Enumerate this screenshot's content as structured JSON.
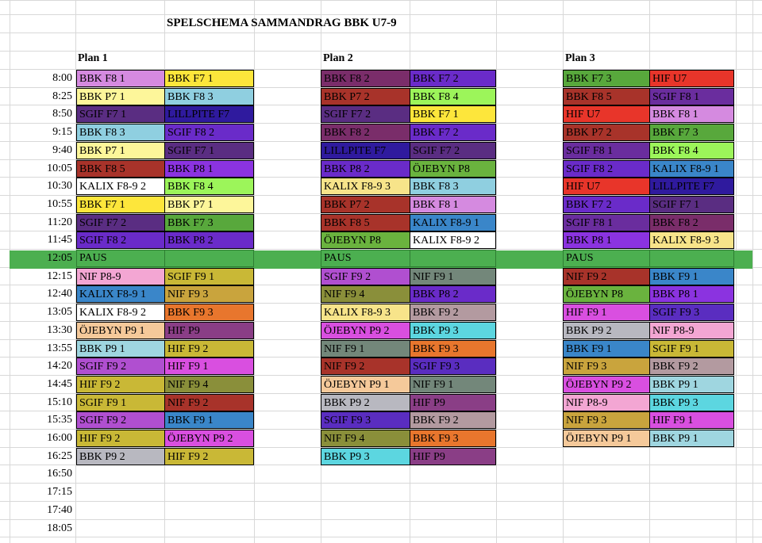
{
  "title": "SPELSCHEMA SAMMANDRAG BBK U7-9",
  "pause_label": "PAUS",
  "pause_time": "12:05",
  "times_before_pause": [
    "8:00",
    "8:25",
    "8:50",
    "9:15",
    "9:40",
    "10:05",
    "10:30",
    "10:55",
    "11:20",
    "11:45"
  ],
  "times_after_pause": [
    "12:15",
    "12:40",
    "13:05",
    "13:30",
    "13:55",
    "14:20",
    "14:45",
    "15:10",
    "15:35",
    "16:00",
    "16:25",
    "16:50",
    "17:15",
    "17:40",
    "18:05"
  ],
  "plans": [
    {
      "label": "Plan 1",
      "before": [
        [
          {
            "t": "BBK F8 1",
            "c": "#d58ae0",
            "f": "#000"
          },
          {
            "t": "BBK F7 1",
            "c": "#fde63b",
            "f": "#000"
          }
        ],
        [
          {
            "t": "BBK P7 1",
            "c": "#fdf69a",
            "f": "#000"
          },
          {
            "t": "BBK F8 3",
            "c": "#8fcfe0",
            "f": "#000"
          }
        ],
        [
          {
            "t": "SGIF F7 1",
            "c": "#5a2d82",
            "f": "#000"
          },
          {
            "t": "LILLPITE F7",
            "c": "#2f1a9e",
            "f": "#000"
          }
        ],
        [
          {
            "t": "BBK F8 3",
            "c": "#8fcfe0",
            "f": "#000"
          },
          {
            "t": "SGIF F8 2",
            "c": "#6a2bc9",
            "f": "#000"
          }
        ],
        [
          {
            "t": "BBK P7 1",
            "c": "#fdf69a",
            "f": "#000"
          },
          {
            "t": "SGIF F7 1",
            "c": "#5a2d82",
            "f": "#000"
          }
        ],
        [
          {
            "t": "BBK F8 5",
            "c": "#a8332a",
            "f": "#000"
          },
          {
            "t": "BBK P8 1",
            "c": "#8b33e0",
            "f": "#000"
          }
        ],
        [
          {
            "t": "KALIX F8-9 2",
            "c": "#ffffff",
            "f": "#000"
          },
          {
            "t": "BBK F8 4",
            "c": "#9cf55a",
            "f": "#000"
          }
        ],
        [
          {
            "t": "BBK F7 1",
            "c": "#fde63b",
            "f": "#000"
          },
          {
            "t": "BBK P7 1",
            "c": "#fdf69a",
            "f": "#000"
          }
        ],
        [
          {
            "t": "SGIF F7 2",
            "c": "#5a2d82",
            "f": "#000"
          },
          {
            "t": "BBK F7 3",
            "c": "#58a83c",
            "f": "#000"
          }
        ],
        [
          {
            "t": "SGIF F8 2",
            "c": "#6a2bc9",
            "f": "#000"
          },
          {
            "t": "BBK P8 2",
            "c": "#6a2bc9",
            "f": "#000"
          }
        ]
      ],
      "after": [
        [
          {
            "t": "NIF P8-9",
            "c": "#f3a6d3",
            "f": "#000"
          },
          {
            "t": "SGIF F9 1",
            "c": "#c9b836",
            "f": "#000"
          }
        ],
        [
          {
            "t": "KALIX F8-9 1",
            "c": "#3a86c9",
            "f": "#000"
          },
          {
            "t": "NIF F9 3",
            "c": "#c9a43d",
            "f": "#000"
          }
        ],
        [
          {
            "t": "KALIX F8-9 2",
            "c": "#ffffff",
            "f": "#000"
          },
          {
            "t": "BBK F9 3",
            "c": "#e8762d",
            "f": "#000"
          }
        ],
        [
          {
            "t": "ÖJEBYN P9 1",
            "c": "#f5c99a",
            "f": "#000"
          },
          {
            "t": "HIF P9",
            "c": "#8a3e86",
            "f": "#000"
          }
        ],
        [
          {
            "t": "BBK P9 1",
            "c": "#9fd6e0",
            "f": "#000"
          },
          {
            "t": "HIF F9 2",
            "c": "#c9b836",
            "f": "#000"
          }
        ],
        [
          {
            "t": "SGIF F9 2",
            "c": "#b04fd0",
            "f": "#000"
          },
          {
            "t": "HIF F9 1",
            "c": "#d94fe0",
            "f": "#000"
          }
        ],
        [
          {
            "t": "HIF F9 2",
            "c": "#c9b836",
            "f": "#000"
          },
          {
            "t": "NIF F9 4",
            "c": "#8a8f3a",
            "f": "#000"
          }
        ],
        [
          {
            "t": "SGIF F9 1",
            "c": "#c9b836",
            "f": "#000"
          },
          {
            "t": "NIF F9 2",
            "c": "#a8332a",
            "f": "#000"
          }
        ],
        [
          {
            "t": "SGIF F9 2",
            "c": "#b04fd0",
            "f": "#000"
          },
          {
            "t": "BBK F9 1",
            "c": "#3a86c9",
            "f": "#000"
          }
        ],
        [
          {
            "t": "HIF F9 2",
            "c": "#c9b836",
            "f": "#000"
          },
          {
            "t": "ÖJEBYN P9 2",
            "c": "#d94fe0",
            "f": "#000"
          }
        ],
        [
          {
            "t": "BBK P9 2",
            "c": "#b8b8c0",
            "f": "#000"
          },
          {
            "t": "HIF F9 2",
            "c": "#c9b836",
            "f": "#000"
          }
        ]
      ]
    },
    {
      "label": "Plan 2",
      "before": [
        [
          {
            "t": "BBK F8 2",
            "c": "#7a2d6a",
            "f": "#000"
          },
          {
            "t": "BBK F7 2",
            "c": "#6a2bc9",
            "f": "#000"
          }
        ],
        [
          {
            "t": "BBK P7 2",
            "c": "#a8332a",
            "f": "#000"
          },
          {
            "t": "BBK F8 4",
            "c": "#9cf55a",
            "f": "#000"
          }
        ],
        [
          {
            "t": "SGIF F7 2",
            "c": "#5a2d82",
            "f": "#000"
          },
          {
            "t": "BBK F7 1",
            "c": "#fde63b",
            "f": "#000"
          }
        ],
        [
          {
            "t": "BBK F8 2",
            "c": "#7a2d6a",
            "f": "#000"
          },
          {
            "t": "BBK F7 2",
            "c": "#6a2bc9",
            "f": "#000"
          }
        ],
        [
          {
            "t": "LILLPITE F7",
            "c": "#2f1a9e",
            "f": "#000"
          },
          {
            "t": "SGIF F7 2",
            "c": "#5a2d82",
            "f": "#000"
          }
        ],
        [
          {
            "t": "BBK P8 2",
            "c": "#6a2bc9",
            "f": "#000"
          },
          {
            "t": "ÖJEBYN P8",
            "c": "#6ab33e",
            "f": "#000"
          }
        ],
        [
          {
            "t": "KALIX F8-9 3",
            "c": "#f7e48a",
            "f": "#000"
          },
          {
            "t": "BBK F8 3",
            "c": "#8fcfe0",
            "f": "#000"
          }
        ],
        [
          {
            "t": "BBK P7 2",
            "c": "#a8332a",
            "f": "#000"
          },
          {
            "t": "BBK F8 1",
            "c": "#d58ae0",
            "f": "#000"
          }
        ],
        [
          {
            "t": "BBK F8 5",
            "c": "#a8332a",
            "f": "#000"
          },
          {
            "t": "KALIX F8-9 1",
            "c": "#3a86c9",
            "f": "#000"
          }
        ],
        [
          {
            "t": "ÖJEBYN P8",
            "c": "#6ab33e",
            "f": "#000"
          },
          {
            "t": "KALIX F8-9 2",
            "c": "#ffffff",
            "f": "#000"
          }
        ]
      ],
      "after": [
        [
          {
            "t": "SGIF F9 2",
            "c": "#b04fd0",
            "f": "#000"
          },
          {
            "t": "NIF F9 1",
            "c": "#73877a",
            "f": "#000"
          }
        ],
        [
          {
            "t": "NIF F9 4",
            "c": "#8a8f3a",
            "f": "#000"
          },
          {
            "t": "BBK P8 2",
            "c": "#6a2bc9",
            "f": "#000"
          }
        ],
        [
          {
            "t": "KALIX F8-9 3",
            "c": "#f7e48a",
            "f": "#000"
          },
          {
            "t": "BBK F9 2",
            "c": "#b39aa0",
            "f": "#000"
          }
        ],
        [
          {
            "t": "ÖJEBYN P9 2",
            "c": "#d94fe0",
            "f": "#000"
          },
          {
            "t": "BBK P9 3",
            "c": "#5cd6e0",
            "f": "#000"
          }
        ],
        [
          {
            "t": "NIF F9 1",
            "c": "#73877a",
            "f": "#000"
          },
          {
            "t": "BBK F9 3",
            "c": "#e8762d",
            "f": "#000"
          }
        ],
        [
          {
            "t": "NIF F9 2",
            "c": "#a8332a",
            "f": "#000"
          },
          {
            "t": "SGIF F9 3",
            "c": "#5a2dc0",
            "f": "#000"
          }
        ],
        [
          {
            "t": "ÖJEBYN P9 1",
            "c": "#f5c99a",
            "f": "#000"
          },
          {
            "t": "NIF F9 1",
            "c": "#73877a",
            "f": "#000"
          }
        ],
        [
          {
            "t": "BBK P9 2",
            "c": "#b8b8c0",
            "f": "#000"
          },
          {
            "t": "HIF P9",
            "c": "#8a3e86",
            "f": "#000"
          }
        ],
        [
          {
            "t": "SGIF F9 3",
            "c": "#5a2dc0",
            "f": "#000"
          },
          {
            "t": "BBK F9 2",
            "c": "#b39aa0",
            "f": "#000"
          }
        ],
        [
          {
            "t": "NIF F9 4",
            "c": "#8a8f3a",
            "f": "#000"
          },
          {
            "t": "BBK F9 3",
            "c": "#e8762d",
            "f": "#000"
          }
        ],
        [
          {
            "t": "BBK P9 3",
            "c": "#5cd6e0",
            "f": "#000"
          },
          {
            "t": "HIF P9",
            "c": "#8a3e86",
            "f": "#000"
          }
        ]
      ]
    },
    {
      "label": "Plan 3",
      "before": [
        [
          {
            "t": "BBK F7 3",
            "c": "#58a83c",
            "f": "#000"
          },
          {
            "t": "HIF U7",
            "c": "#e8352a",
            "f": "#000"
          }
        ],
        [
          {
            "t": "BBK F8 5",
            "c": "#a8332a",
            "f": "#000"
          },
          {
            "t": "SGIF F8 1",
            "c": "#6a2d9e",
            "f": "#000"
          }
        ],
        [
          {
            "t": "HIF U7",
            "c": "#e8352a",
            "f": "#000"
          },
          {
            "t": "BBK F8 1",
            "c": "#d58ae0",
            "f": "#000"
          }
        ],
        [
          {
            "t": "BBK P7 2",
            "c": "#a8332a",
            "f": "#000"
          },
          {
            "t": "BBK F7 3",
            "c": "#58a83c",
            "f": "#000"
          }
        ],
        [
          {
            "t": "SGIF F8 1",
            "c": "#6a2d9e",
            "f": "#000"
          },
          {
            "t": "BBK F8 4",
            "c": "#9cf55a",
            "f": "#000"
          }
        ],
        [
          {
            "t": "SGIF F8 2",
            "c": "#6a2bc9",
            "f": "#000"
          },
          {
            "t": "KALIX F8-9 1",
            "c": "#3a86c9",
            "f": "#000"
          }
        ],
        [
          {
            "t": "HIF U7",
            "c": "#e8352a",
            "f": "#000"
          },
          {
            "t": "LILLPITE F7",
            "c": "#2f1a9e",
            "f": "#000"
          }
        ],
        [
          {
            "t": "BBK F7 2",
            "c": "#6a2bc9",
            "f": "#000"
          },
          {
            "t": "SGIF F7 1",
            "c": "#5a2d82",
            "f": "#000"
          }
        ],
        [
          {
            "t": "SGIF F8 1",
            "c": "#6a2d9e",
            "f": "#000"
          },
          {
            "t": "BBK F8 2",
            "c": "#7a2d6a",
            "f": "#000"
          }
        ],
        [
          {
            "t": "BBK P8 1",
            "c": "#8b33e0",
            "f": "#000"
          },
          {
            "t": "KALIX F8-9 3",
            "c": "#f7e48a",
            "f": "#000"
          }
        ]
      ],
      "after": [
        [
          {
            "t": "NIF F9 2",
            "c": "#a8332a",
            "f": "#000"
          },
          {
            "t": "BBK F9 1",
            "c": "#3a86c9",
            "f": "#000"
          }
        ],
        [
          {
            "t": "ÖJEBYN P8",
            "c": "#6ab33e",
            "f": "#000"
          },
          {
            "t": "BBK P8 1",
            "c": "#8b33e0",
            "f": "#000"
          }
        ],
        [
          {
            "t": "HIF F9 1",
            "c": "#d94fe0",
            "f": "#000"
          },
          {
            "t": "SGIF F9 3",
            "c": "#5a2dc0",
            "f": "#000"
          }
        ],
        [
          {
            "t": "BBK P9 2",
            "c": "#b8b8c0",
            "f": "#000"
          },
          {
            "t": "NIF P8-9",
            "c": "#f3a6d3",
            "f": "#000"
          }
        ],
        [
          {
            "t": "BBK F9 1",
            "c": "#3a86c9",
            "f": "#000"
          },
          {
            "t": "SGIF F9 1",
            "c": "#c9b836",
            "f": "#000"
          }
        ],
        [
          {
            "t": "NIF F9 3",
            "c": "#c9a43d",
            "f": "#000"
          },
          {
            "t": "BBK F9 2",
            "c": "#b39aa0",
            "f": "#000"
          }
        ],
        [
          {
            "t": "ÖJEBYN P9 2",
            "c": "#d94fe0",
            "f": "#000"
          },
          {
            "t": "BBK P9 1",
            "c": "#9fd6e0",
            "f": "#000"
          }
        ],
        [
          {
            "t": "NIF P8-9",
            "c": "#f3a6d3",
            "f": "#000"
          },
          {
            "t": "BBK P9 3",
            "c": "#5cd6e0",
            "f": "#000"
          }
        ],
        [
          {
            "t": "NIF F9 3",
            "c": "#c9a43d",
            "f": "#000"
          },
          {
            "t": "HIF F9 1",
            "c": "#d94fe0",
            "f": "#000"
          }
        ],
        [
          {
            "t": "ÖJEBYN P9 1",
            "c": "#f5c99a",
            "f": "#000"
          },
          {
            "t": "BBK P9 1",
            "c": "#9fd6e0",
            "f": "#000"
          }
        ]
      ]
    }
  ]
}
